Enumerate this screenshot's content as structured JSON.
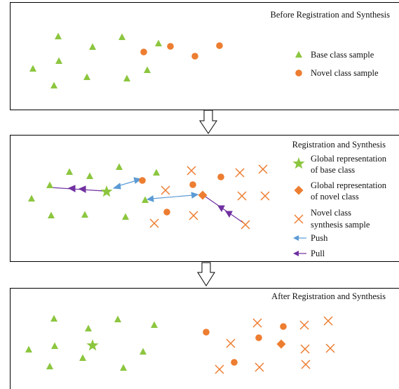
{
  "panels": [
    {
      "title": "Before Registration and Synthesis",
      "legend": [
        {
          "icon": "triangle-icon",
          "lines": [
            "Base class sample"
          ]
        },
        {
          "icon": "circle-icon",
          "lines": [
            "Novel class sample"
          ]
        }
      ]
    },
    {
      "title": "Registration and Synthesis",
      "legend": [
        {
          "icon": "star-icon",
          "lines": [
            "Global representation",
            "of base class"
          ]
        },
        {
          "icon": "diamond-icon",
          "lines": [
            "Global representation",
            "of novel class"
          ]
        },
        {
          "icon": "cross-icon",
          "lines": [
            "Novel class",
            "synthesis sample"
          ]
        },
        {
          "icon": "arrow-left-icon",
          "lines": [
            "Push"
          ]
        },
        {
          "icon": "arrow-left-icon",
          "lines": [
            "Pull"
          ]
        }
      ]
    },
    {
      "title": "After Registration and Synthesis",
      "legend": []
    }
  ],
  "colors": {
    "base": "#8cc63f",
    "novel": "#ed7d31",
    "push": "#5b9bd5",
    "pull": "#7030a0",
    "border": "#000000"
  }
}
